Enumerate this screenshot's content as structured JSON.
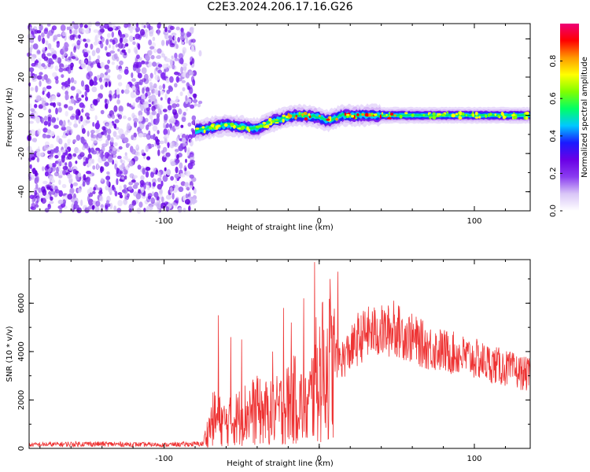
{
  "title": "C2E3.2024.206.17.16.G26",
  "colors": {
    "snr_line": "#ee3333",
    "frame": "#000000",
    "colormap": [
      "#ffffff",
      "#d9c6f7",
      "#8a3cf0",
      "#6a00e6",
      "#1a1aff",
      "#00c8ff",
      "#00ff66",
      "#80ff00",
      "#ffff00",
      "#ff9900",
      "#ff0000",
      "#ee0077"
    ]
  },
  "chart_data": [
    {
      "type": "heatmap",
      "title": "C2E3.2024.206.17.16.G26",
      "xlabel": "Height of straight line (km)",
      "ylabel": "Frequency (Hz)",
      "xlim": [
        -187,
        136
      ],
      "ylim": [
        -50,
        48
      ],
      "x_ticks": [
        -100,
        0,
        100
      ],
      "y_ticks": [
        40,
        20,
        0,
        -20,
        -40
      ],
      "colorbar": {
        "label": "Normalized spectral amplitude",
        "range": [
          0,
          1
        ],
        "ticks": [
          0.0,
          0.2,
          0.4,
          0.6,
          0.8
        ]
      },
      "regions": [
        {
          "x_range": [
            -187,
            -80
          ],
          "description": "scattered noise across full frequency range"
        },
        {
          "x_range": [
            -80,
            136
          ],
          "description": "concentrated signal band near 0 Hz"
        }
      ],
      "signal_center_hz": [
        {
          "x": -80,
          "y": -8
        },
        {
          "x": -60,
          "y": -5
        },
        {
          "x": -40,
          "y": -7
        },
        {
          "x": -30,
          "y": -3
        },
        {
          "x": -15,
          "y": 0
        },
        {
          "x": 0,
          "y": -1
        },
        {
          "x": 5,
          "y": -3
        },
        {
          "x": 15,
          "y": 0
        },
        {
          "x": 50,
          "y": 0
        },
        {
          "x": 100,
          "y": 0
        },
        {
          "x": 136,
          "y": 0
        }
      ]
    },
    {
      "type": "line",
      "xlabel": "Height of straight line (km)",
      "ylabel": "SNR (10 * v/v)",
      "xlim": [
        -187,
        136
      ],
      "ylim": [
        0,
        7800
      ],
      "x_ticks": [
        -100,
        0,
        100
      ],
      "y_ticks": [
        0,
        2000,
        4000,
        6000
      ],
      "series": [
        {
          "envelope": [
            {
              "x": -187,
              "y": 200
            },
            {
              "x": -150,
              "y": 250
            },
            {
              "x": -100,
              "y": 200
            },
            {
              "x": -75,
              "y": 250
            },
            {
              "x": -68,
              "y": 1500
            },
            {
              "x": -60,
              "y": 1200
            },
            {
              "x": -45,
              "y": 1800
            },
            {
              "x": -30,
              "y": 1700
            },
            {
              "x": -15,
              "y": 2400
            },
            {
              "x": -8,
              "y": 1800
            },
            {
              "x": -2,
              "y": 3300
            },
            {
              "x": 5,
              "y": 4000
            },
            {
              "x": 15,
              "y": 3800
            },
            {
              "x": 30,
              "y": 4900
            },
            {
              "x": 50,
              "y": 5000
            },
            {
              "x": 70,
              "y": 4300
            },
            {
              "x": 100,
              "y": 3800
            },
            {
              "x": 120,
              "y": 3400
            },
            {
              "x": 136,
              "y": 3100
            }
          ],
          "spikes": [
            {
              "x": -65,
              "y": 5500
            },
            {
              "x": -57,
              "y": 4600
            },
            {
              "x": -50,
              "y": 4500
            },
            {
              "x": -40,
              "y": 3000
            },
            {
              "x": -30,
              "y": 4000
            },
            {
              "x": -23,
              "y": 5800
            },
            {
              "x": -18,
              "y": 5200
            },
            {
              "x": -10,
              "y": 6200
            },
            {
              "x": -3,
              "y": 7700
            },
            {
              "x": 2,
              "y": 6000
            },
            {
              "x": 7,
              "y": 7000
            },
            {
              "x": 12,
              "y": 7300
            },
            {
              "x": 25,
              "y": 5600
            },
            {
              "x": 48,
              "y": 6100
            }
          ]
        }
      ]
    }
  ]
}
